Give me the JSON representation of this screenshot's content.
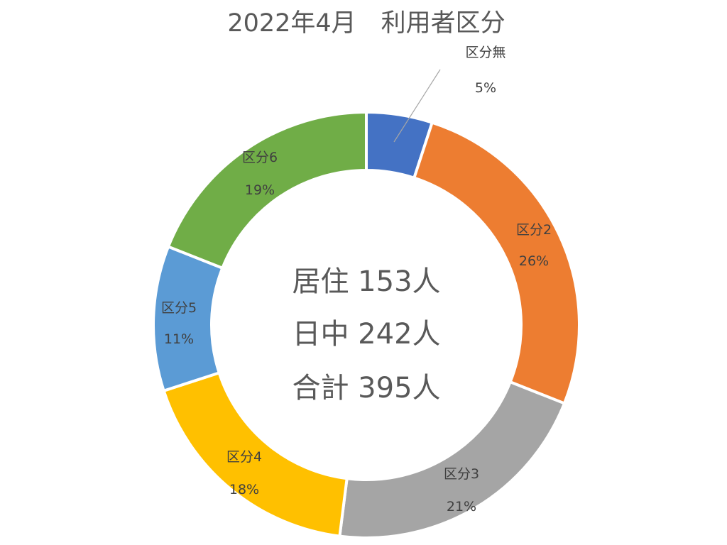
{
  "chart_data": {
    "type": "pie",
    "title": "2022年4月　利用者区分",
    "categories": [
      "区分無",
      "区分2",
      "区分3",
      "区分4",
      "区分5",
      "区分6"
    ],
    "values": [
      5,
      26,
      21,
      18,
      11,
      19
    ],
    "value_labels": [
      "5%",
      "26%",
      "21%",
      "18%",
      "11%",
      "19%"
    ],
    "colors": [
      "#4472C4",
      "#ED7D31",
      "#A5A5A5",
      "#FFC000",
      "#5B9BD5",
      "#70AD47"
    ],
    "donut": true,
    "center_lines": [
      "居住 153人",
      "日中 242人",
      "合計 395人"
    ]
  }
}
